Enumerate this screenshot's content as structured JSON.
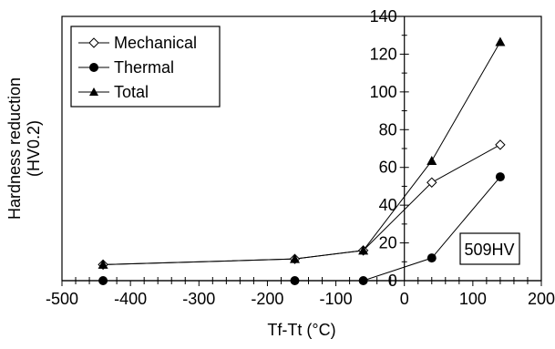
{
  "chart_data": {
    "type": "line",
    "xlabel": "Tf-Tt (°C)",
    "ylabel_lines": [
      "Hardness reduction",
      "(HV0.2)"
    ],
    "xlim": [
      -500,
      200
    ],
    "ylim": [
      0,
      140
    ],
    "x_ticks": [
      -500,
      -400,
      -300,
      -200,
      -100,
      0,
      100,
      200
    ],
    "y_ticks": [
      0,
      20,
      40,
      60,
      80,
      100,
      120,
      140
    ],
    "x_tick_labels": [
      "-500",
      "-400",
      "-300",
      "-200",
      "-100",
      "0",
      "100",
      "200"
    ],
    "y_tick_labels": [
      "0",
      "20",
      "40",
      "60",
      "80",
      "100",
      "120",
      "140"
    ],
    "y_axis_at_x": 0,
    "grid": false,
    "legend_position": "top-left",
    "series": [
      {
        "name": "Mechanical",
        "marker": "open-diamond",
        "x": [
          -440,
          -160,
          -60,
          40,
          140
        ],
        "y": [
          8.5,
          11.5,
          16,
          52,
          72
        ]
      },
      {
        "name": "Thermal",
        "marker": "filled-circle",
        "x": [
          -440,
          -160,
          -60,
          40,
          140
        ],
        "y": [
          0,
          0,
          0,
          12,
          55
        ]
      },
      {
        "name": "Total",
        "marker": "filled-triangle",
        "x": [
          -440,
          -160,
          -60,
          40,
          140
        ],
        "y": [
          8.5,
          11.5,
          16,
          63.5,
          126.5
        ]
      }
    ],
    "annotation": "509HV"
  }
}
